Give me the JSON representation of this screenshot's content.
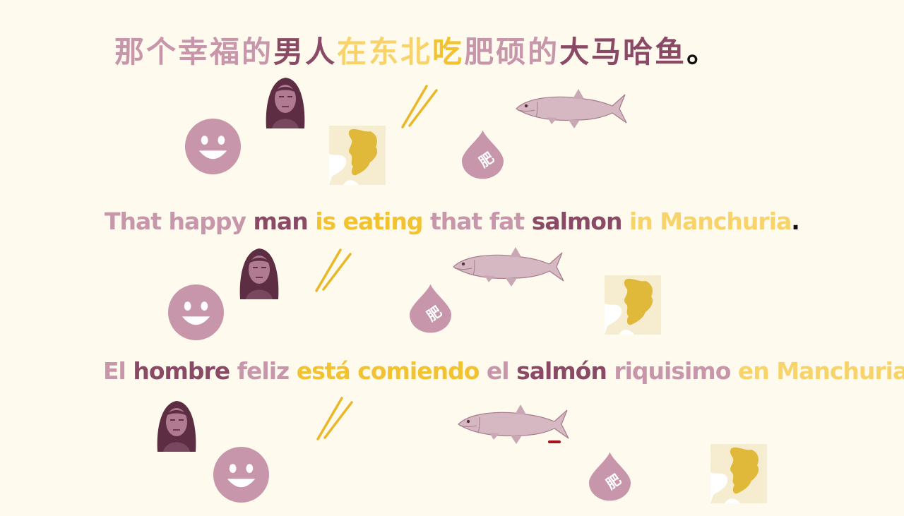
{
  "sentences": {
    "zh": [
      {
        "text": "那个幸福的",
        "color": "light"
      },
      {
        "text": "男人",
        "color": "dark"
      },
      {
        "text": "在东北",
        "color": "lgold"
      },
      {
        "text": "吃",
        "color": "gold"
      },
      {
        "text": "肥硕的",
        "color": "light"
      },
      {
        "text": "大马哈鱼",
        "color": "dark"
      },
      {
        "text": "。",
        "color": "black"
      }
    ],
    "en": [
      {
        "text": "That happy ",
        "color": "light"
      },
      {
        "text": "man ",
        "color": "dark"
      },
      {
        "text": "is eating ",
        "color": "gold"
      },
      {
        "text": "that fat ",
        "color": "light"
      },
      {
        "text": "salmon ",
        "color": "dark"
      },
      {
        "text": "in Manchuria",
        "color": "lgold"
      },
      {
        "text": ".",
        "color": "black"
      }
    ],
    "es": [
      {
        "text": "El ",
        "color": "light"
      },
      {
        "text": "hombre ",
        "color": "dark"
      },
      {
        "text": "feliz ",
        "color": "light"
      },
      {
        "text": "está comiendo ",
        "color": "gold"
      },
      {
        "text": "el ",
        "color": "light"
      },
      {
        "text": "salmón ",
        "color": "dark"
      },
      {
        "text": "riquisimo ",
        "color": "light"
      },
      {
        "text": "en Manchuria",
        "color": "lgold"
      },
      {
        "text": ".",
        "color": "black"
      }
    ]
  },
  "icons": {
    "fat_glyph": "肥",
    "smiley": "smiley-face-icon",
    "portrait": "man-portrait-icon",
    "chopsticks": "chopsticks-icon",
    "salmon": "salmon-fish-icon",
    "drop": "fat-drop-icon",
    "map": "manchuria-map-icon"
  },
  "colors": {
    "background": "#fefaed",
    "light_mauve": "#c796ab",
    "dark_mauve": "#8a4a65",
    "gold": "#f2c230",
    "light_gold": "#f8d36a",
    "map_region": "#e0b83a"
  }
}
